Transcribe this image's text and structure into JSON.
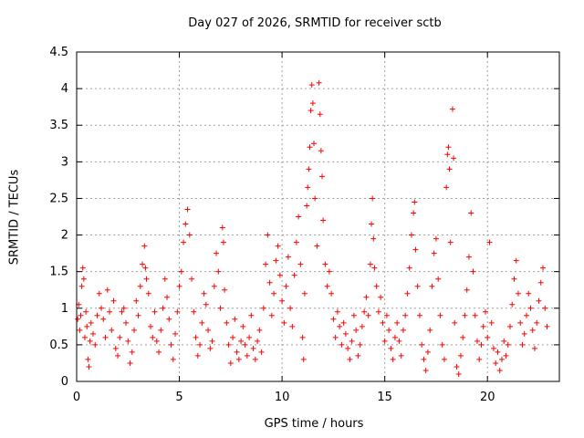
{
  "chart_data": {
    "type": "scatter",
    "title": "Day 027 of 2026, SRMTID for receiver sctb",
    "xlabel": "GPS time / hours",
    "ylabel": "SRMTID / TECUs",
    "xlim": [
      0,
      23.5
    ],
    "ylim": [
      0,
      4.5
    ],
    "xticks": [
      0,
      5,
      10,
      15,
      20
    ],
    "yticks": [
      0,
      0.5,
      1,
      1.5,
      2,
      2.5,
      3,
      3.5,
      4,
      4.5
    ],
    "grid": true,
    "marker": "+",
    "color": "#ff0000",
    "series": [
      {
        "name": "SRMTID",
        "points": [
          [
            0.05,
            0.85
          ],
          [
            0.1,
            1.05
          ],
          [
            0.15,
            0.7
          ],
          [
            0.2,
            0.9
          ],
          [
            0.25,
            1.3
          ],
          [
            0.3,
            1.55
          ],
          [
            0.35,
            1.4
          ],
          [
            0.4,
            0.6
          ],
          [
            0.45,
            0.95
          ],
          [
            0.5,
            0.75
          ],
          [
            0.55,
            0.3
          ],
          [
            0.6,
            0.2
          ],
          [
            0.65,
            0.55
          ],
          [
            0.7,
            0.8
          ],
          [
            0.8,
            0.65
          ],
          [
            0.9,
            0.5
          ],
          [
            1.0,
            0.9
          ],
          [
            1.1,
            1.2
          ],
          [
            1.2,
            1.0
          ],
          [
            1.3,
            0.85
          ],
          [
            1.4,
            0.6
          ],
          [
            1.5,
            1.25
          ],
          [
            1.6,
            0.95
          ],
          [
            1.7,
            0.7
          ],
          [
            1.8,
            1.1
          ],
          [
            1.9,
            0.45
          ],
          [
            2.0,
            0.35
          ],
          [
            2.1,
            0.6
          ],
          [
            2.2,
            0.95
          ],
          [
            2.3,
            1.0
          ],
          [
            2.4,
            0.8
          ],
          [
            2.5,
            0.55
          ],
          [
            2.6,
            0.25
          ],
          [
            2.7,
            0.4
          ],
          [
            2.8,
            0.7
          ],
          [
            2.9,
            1.1
          ],
          [
            3.0,
            0.9
          ],
          [
            3.1,
            1.3
          ],
          [
            3.2,
            1.6
          ],
          [
            3.3,
            1.85
          ],
          [
            3.35,
            1.55
          ],
          [
            3.4,
            1.4
          ],
          [
            3.5,
            1.2
          ],
          [
            3.6,
            0.75
          ],
          [
            3.7,
            0.6
          ],
          [
            3.8,
            0.95
          ],
          [
            3.9,
            0.55
          ],
          [
            4.0,
            0.4
          ],
          [
            4.1,
            0.7
          ],
          [
            4.2,
            1.0
          ],
          [
            4.3,
            1.4
          ],
          [
            4.4,
            1.15
          ],
          [
            4.5,
            0.85
          ],
          [
            4.6,
            0.5
          ],
          [
            4.7,
            0.3
          ],
          [
            4.8,
            0.65
          ],
          [
            4.9,
            0.95
          ],
          [
            5.0,
            1.3
          ],
          [
            5.1,
            1.5
          ],
          [
            5.2,
            1.9
          ],
          [
            5.3,
            2.15
          ],
          [
            5.4,
            2.35
          ],
          [
            5.5,
            2.0
          ],
          [
            5.6,
            1.4
          ],
          [
            5.7,
            0.95
          ],
          [
            5.8,
            0.6
          ],
          [
            5.9,
            0.35
          ],
          [
            6.0,
            0.5
          ],
          [
            6.1,
            0.8
          ],
          [
            6.2,
            1.2
          ],
          [
            6.3,
            1.05
          ],
          [
            6.4,
            0.7
          ],
          [
            6.5,
            0.45
          ],
          [
            6.6,
            0.55
          ],
          [
            6.7,
            1.3
          ],
          [
            6.8,
            1.75
          ],
          [
            6.9,
            1.5
          ],
          [
            7.0,
            1.0
          ],
          [
            7.1,
            2.1
          ],
          [
            7.15,
            1.9
          ],
          [
            7.2,
            1.25
          ],
          [
            7.3,
            0.8
          ],
          [
            7.4,
            0.5
          ],
          [
            7.5,
            0.25
          ],
          [
            7.6,
            0.6
          ],
          [
            7.7,
            0.85
          ],
          [
            7.8,
            0.4
          ],
          [
            7.9,
            0.3
          ],
          [
            8.0,
            0.55
          ],
          [
            8.1,
            0.75
          ],
          [
            8.2,
            0.5
          ],
          [
            8.3,
            0.35
          ],
          [
            8.4,
            0.6
          ],
          [
            8.5,
            0.9
          ],
          [
            8.6,
            0.45
          ],
          [
            8.7,
            0.3
          ],
          [
            8.8,
            0.55
          ],
          [
            8.9,
            0.7
          ],
          [
            9.0,
            0.4
          ],
          [
            9.1,
            1.0
          ],
          [
            9.2,
            1.6
          ],
          [
            9.3,
            2.0
          ],
          [
            9.4,
            1.35
          ],
          [
            9.5,
            0.9
          ],
          [
            9.6,
            1.2
          ],
          [
            9.7,
            1.65
          ],
          [
            9.8,
            1.85
          ],
          [
            9.9,
            1.45
          ],
          [
            10.0,
            1.1
          ],
          [
            10.1,
            0.8
          ],
          [
            10.2,
            1.3
          ],
          [
            10.3,
            1.7
          ],
          [
            10.4,
            1.0
          ],
          [
            10.5,
            0.75
          ],
          [
            10.6,
            1.45
          ],
          [
            10.7,
            1.9
          ],
          [
            10.8,
            2.25
          ],
          [
            10.9,
            1.6
          ],
          [
            11.0,
            0.6
          ],
          [
            11.05,
            0.3
          ],
          [
            11.1,
            1.2
          ],
          [
            11.2,
            2.4
          ],
          [
            11.25,
            2.65
          ],
          [
            11.3,
            2.9
          ],
          [
            11.35,
            3.2
          ],
          [
            11.4,
            3.7
          ],
          [
            11.45,
            4.05
          ],
          [
            11.5,
            3.8
          ],
          [
            11.55,
            3.25
          ],
          [
            11.6,
            2.5
          ],
          [
            11.7,
            1.85
          ],
          [
            11.8,
            4.08
          ],
          [
            11.85,
            3.65
          ],
          [
            11.9,
            3.15
          ],
          [
            11.95,
            2.8
          ],
          [
            12.0,
            2.2
          ],
          [
            12.1,
            1.6
          ],
          [
            12.2,
            1.3
          ],
          [
            12.3,
            1.5
          ],
          [
            12.4,
            1.2
          ],
          [
            12.5,
            0.85
          ],
          [
            12.6,
            0.6
          ],
          [
            12.7,
            0.95
          ],
          [
            12.8,
            0.75
          ],
          [
            12.9,
            0.5
          ],
          [
            13.0,
            0.8
          ],
          [
            13.1,
            0.65
          ],
          [
            13.2,
            0.45
          ],
          [
            13.3,
            0.3
          ],
          [
            13.4,
            0.55
          ],
          [
            13.5,
            0.9
          ],
          [
            13.6,
            0.7
          ],
          [
            13.7,
            0.35
          ],
          [
            13.8,
            0.5
          ],
          [
            13.9,
            0.75
          ],
          [
            14.0,
            0.95
          ],
          [
            14.1,
            1.15
          ],
          [
            14.2,
            0.9
          ],
          [
            14.3,
            1.6
          ],
          [
            14.35,
            2.15
          ],
          [
            14.4,
            2.5
          ],
          [
            14.45,
            1.95
          ],
          [
            14.5,
            1.55
          ],
          [
            14.6,
            1.3
          ],
          [
            14.7,
            0.95
          ],
          [
            14.8,
            1.15
          ],
          [
            14.9,
            0.8
          ],
          [
            15.0,
            0.55
          ],
          [
            15.1,
            0.9
          ],
          [
            15.2,
            0.7
          ],
          [
            15.3,
            0.45
          ],
          [
            15.4,
            0.3
          ],
          [
            15.5,
            0.6
          ],
          [
            15.6,
            0.8
          ],
          [
            15.7,
            0.55
          ],
          [
            15.8,
            0.35
          ],
          [
            15.9,
            0.7
          ],
          [
            16.0,
            0.9
          ],
          [
            16.1,
            1.2
          ],
          [
            16.2,
            1.55
          ],
          [
            16.3,
            2.0
          ],
          [
            16.4,
            2.3
          ],
          [
            16.45,
            2.45
          ],
          [
            16.5,
            1.8
          ],
          [
            16.6,
            1.3
          ],
          [
            16.7,
            0.9
          ],
          [
            16.8,
            0.5
          ],
          [
            16.9,
            0.3
          ],
          [
            17.0,
            0.15
          ],
          [
            17.1,
            0.4
          ],
          [
            17.2,
            0.7
          ],
          [
            17.3,
            1.3
          ],
          [
            17.4,
            1.75
          ],
          [
            17.5,
            1.95
          ],
          [
            17.6,
            1.4
          ],
          [
            17.7,
            0.9
          ],
          [
            17.8,
            0.5
          ],
          [
            17.9,
            0.3
          ],
          [
            18.0,
            2.65
          ],
          [
            18.05,
            3.1
          ],
          [
            18.1,
            3.2
          ],
          [
            18.15,
            2.9
          ],
          [
            18.2,
            1.9
          ],
          [
            18.3,
            3.72
          ],
          [
            18.35,
            3.05
          ],
          [
            18.4,
            0.8
          ],
          [
            18.5,
            0.2
          ],
          [
            18.6,
            0.1
          ],
          [
            18.7,
            0.35
          ],
          [
            18.8,
            0.6
          ],
          [
            18.9,
            0.9
          ],
          [
            19.0,
            1.25
          ],
          [
            19.1,
            1.7
          ],
          [
            19.2,
            2.3
          ],
          [
            19.3,
            1.5
          ],
          [
            19.4,
            0.9
          ],
          [
            19.5,
            0.55
          ],
          [
            19.6,
            0.3
          ],
          [
            19.7,
            0.5
          ],
          [
            19.8,
            0.75
          ],
          [
            19.9,
            0.95
          ],
          [
            20.0,
            0.6
          ],
          [
            20.1,
            1.9
          ],
          [
            20.2,
            0.8
          ],
          [
            20.3,
            0.45
          ],
          [
            20.4,
            0.25
          ],
          [
            20.5,
            0.4
          ],
          [
            20.6,
            0.15
          ],
          [
            20.7,
            0.3
          ],
          [
            20.8,
            0.55
          ],
          [
            20.9,
            0.35
          ],
          [
            21.0,
            0.5
          ],
          [
            21.1,
            0.75
          ],
          [
            21.2,
            1.05
          ],
          [
            21.3,
            1.4
          ],
          [
            21.4,
            1.65
          ],
          [
            21.5,
            1.2
          ],
          [
            21.6,
            0.8
          ],
          [
            21.7,
            0.5
          ],
          [
            21.8,
            0.65
          ],
          [
            21.9,
            0.9
          ],
          [
            22.0,
            1.2
          ],
          [
            22.1,
            1.0
          ],
          [
            22.2,
            0.7
          ],
          [
            22.3,
            0.45
          ],
          [
            22.4,
            0.8
          ],
          [
            22.5,
            1.1
          ],
          [
            22.6,
            1.35
          ],
          [
            22.7,
            1.55
          ],
          [
            22.8,
            1.0
          ],
          [
            22.9,
            0.75
          ]
        ]
      }
    ]
  }
}
